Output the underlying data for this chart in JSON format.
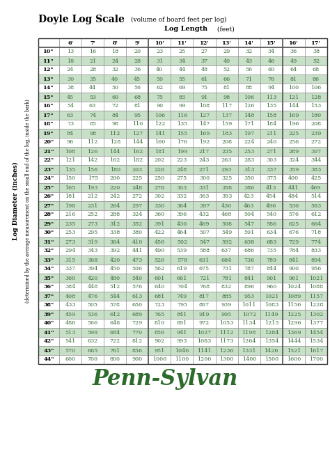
{
  "title_bold": "Doyle Log Scale",
  "title_normal": " (volume of board feet per log)",
  "col_header_label": "Log Length",
  "col_header_unit": " (feet)",
  "col_headers": [
    "6'",
    "7'",
    "8'",
    "9'",
    "10'",
    "11'",
    "12'",
    "13'",
    "14'",
    "15'",
    "16'",
    "17'"
  ],
  "row_label": "Log Diameter (inches)",
  "row_sublabel": "(determined by the average measurement on the small end of the log, inside the bark)",
  "row_headers": [
    "10\"",
    "11\"",
    "12\"",
    "13\"",
    "14\"",
    "15\"",
    "16\"",
    "17\"",
    "18\"",
    "19\"",
    "20\"",
    "21\"",
    "22\"",
    "23\"",
    "24\"",
    "25\"",
    "26\"",
    "27\"",
    "28\"",
    "29\"",
    "30\"",
    "31\"",
    "32\"",
    "33\"",
    "34\"",
    "35\"",
    "36\"",
    "37\"",
    "38\"",
    "39\"",
    "40\"",
    "41\"",
    "42\"",
    "43\"",
    "44\""
  ],
  "table_data": [
    [
      13,
      16,
      18,
      20,
      23,
      25,
      27,
      29,
      32,
      34,
      36,
      38
    ],
    [
      18,
      21,
      24,
      28,
      31,
      34,
      37,
      40,
      43,
      46,
      49,
      52
    ],
    [
      24,
      28,
      32,
      36,
      40,
      44,
      48,
      52,
      56,
      60,
      64,
      68
    ],
    [
      30,
      35,
      40,
      45,
      50,
      55,
      61,
      66,
      71,
      76,
      81,
      86
    ],
    [
      38,
      44,
      50,
      56,
      62,
      69,
      75,
      81,
      88,
      94,
      100,
      106
    ],
    [
      45,
      53,
      60,
      68,
      75,
      83,
      91,
      98,
      106,
      113,
      121,
      128
    ],
    [
      54,
      63,
      72,
      81,
      90,
      99,
      108,
      117,
      126,
      135,
      144,
      153
    ],
    [
      63,
      74,
      84,
      95,
      106,
      116,
      127,
      137,
      148,
      158,
      169,
      180
    ],
    [
      73,
      85,
      98,
      110,
      122,
      135,
      147,
      159,
      171,
      184,
      196,
      208
    ],
    [
      84,
      98,
      112,
      127,
      141,
      155,
      169,
      183,
      197,
      211,
      225,
      239
    ],
    [
      96,
      112,
      128,
      144,
      160,
      176,
      192,
      208,
      224,
      240,
      256,
      272
    ],
    [
      108,
      126,
      144,
      162,
      181,
      199,
      217,
      235,
      253,
      271,
      289,
      307
    ],
    [
      121,
      142,
      162,
      182,
      202,
      223,
      243,
      263,
      283,
      303,
      324,
      344
    ],
    [
      135,
      156,
      180,
      203,
      226,
      248,
      271,
      293,
      313,
      337,
      359,
      383
    ],
    [
      150,
      175,
      200,
      225,
      250,
      275,
      300,
      325,
      350,
      375,
      400,
      425
    ],
    [
      165,
      193,
      220,
      248,
      276,
      303,
      331,
      358,
      386,
      413,
      441,
      469
    ],
    [
      181,
      212,
      242,
      272,
      302,
      332,
      363,
      393,
      423,
      454,
      484,
      514
    ],
    [
      198,
      231,
      264,
      297,
      330,
      364,
      397,
      430,
      463,
      496,
      530,
      563
    ],
    [
      216,
      252,
      288,
      324,
      360,
      396,
      432,
      468,
      504,
      540,
      576,
      612
    ],
    [
      235,
      273,
      312,
      352,
      391,
      430,
      469,
      508,
      547,
      586,
      625,
      664
    ],
    [
      253,
      295,
      338,
      380,
      422,
      464,
      507,
      549,
      591,
      634,
      676,
      718
    ],
    [
      273,
      319,
      364,
      410,
      456,
      502,
      547,
      592,
      638,
      683,
      729,
      774
    ],
    [
      294,
      343,
      392,
      441,
      490,
      539,
      588,
      637,
      686,
      735,
      784,
      833
    ],
    [
      315,
      368,
      420,
      473,
      526,
      578,
      631,
      684,
      736,
      789,
      841,
      894
    ],
    [
      337,
      394,
      450,
      506,
      562,
      619,
      675,
      731,
      787,
      844,
      900,
      956
    ],
    [
      360,
      420,
      480,
      540,
      601,
      661,
      721,
      781,
      841,
      901,
      961,
      1021
    ],
    [
      384,
      448,
      512,
      576,
      640,
      704,
      768,
      832,
      896,
      960,
      1024,
      1088
    ],
    [
      408,
      476,
      544,
      613,
      681,
      749,
      817,
      885,
      953,
      1021,
      1089,
      1157
    ],
    [
      433,
      505,
      578,
      650,
      723,
      795,
      867,
      939,
      1011,
      1083,
      1156,
      1228
    ],
    [
      459,
      536,
      612,
      689,
      765,
      841,
      919,
      995,
      1072,
      1149,
      1225,
      1302
    ],
    [
      486,
      566,
      648,
      729,
      810,
      891,
      972,
      1053,
      1134,
      1215,
      1296,
      1377
    ],
    [
      513,
      599,
      684,
      770,
      856,
      941,
      1027,
      1112,
      1198,
      1284,
      1369,
      1454
    ],
    [
      541,
      632,
      722,
      812,
      902,
      993,
      1083,
      1173,
      1264,
      1354,
      1444,
      1534
    ],
    [
      570,
      665,
      761,
      856,
      951,
      1046,
      1141,
      1236,
      1331,
      1426,
      1521,
      1617
    ],
    [
      600,
      700,
      800,
      900,
      1000,
      1100,
      1200,
      1300,
      1400,
      1500,
      1600,
      1700
    ]
  ],
  "even_row_color": "#c8dfc8",
  "odd_row_color": "#ffffff",
  "text_color_data": "#3a6b3a",
  "text_color_header": "#000000",
  "thick_border_after_cols": [
    3,
    9
  ],
  "footer_text": "Penn-Sylvan",
  "footer_color": "#2d6b2d",
  "bg_color": "#ffffff",
  "figsize": [
    4.74,
    6.45
  ],
  "dpi": 100
}
